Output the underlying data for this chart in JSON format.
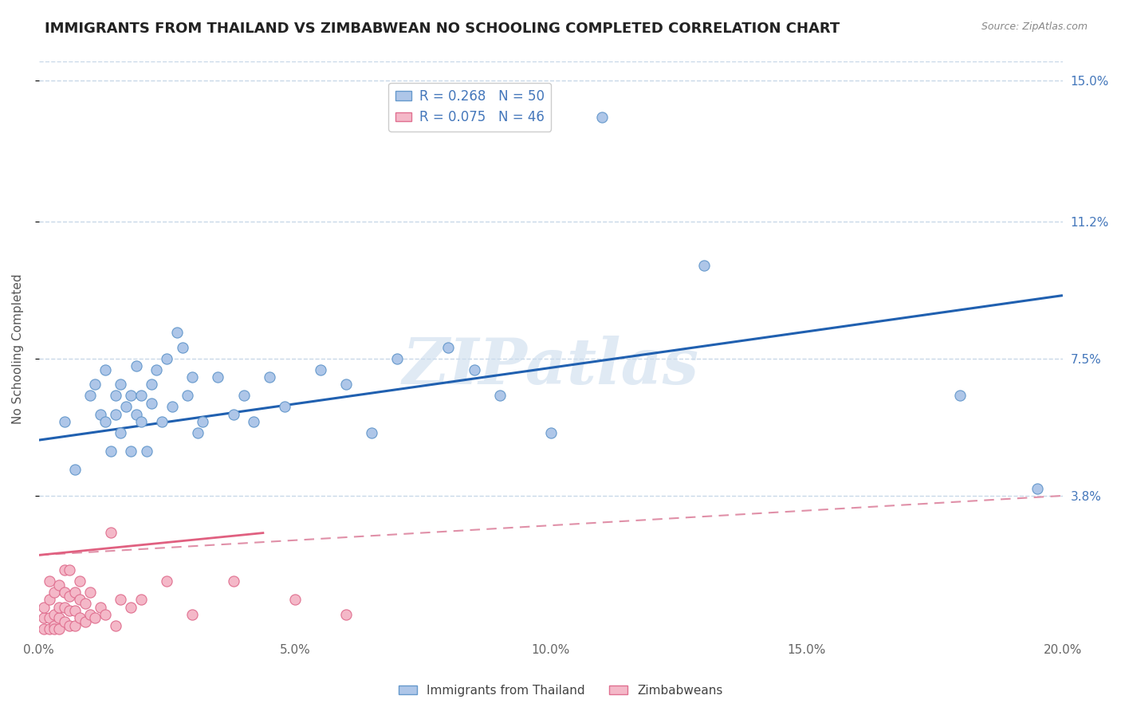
{
  "title": "IMMIGRANTS FROM THAILAND VS ZIMBABWEAN NO SCHOOLING COMPLETED CORRELATION CHART",
  "source_text": "Source: ZipAtlas.com",
  "ylabel": "No Schooling Completed",
  "xlim": [
    0.0,
    0.2
  ],
  "ylim": [
    0.0,
    0.155
  ],
  "xticks": [
    0.0,
    0.05,
    0.1,
    0.15,
    0.2
  ],
  "xtick_labels": [
    "0.0%",
    "5.0%",
    "10.0%",
    "15.0%",
    "20.0%"
  ],
  "ytick_positions": [
    0.038,
    0.075,
    0.112,
    0.15
  ],
  "ytick_labels": [
    "3.8%",
    "7.5%",
    "11.2%",
    "15.0%"
  ],
  "legend_r1": "R = 0.268",
  "legend_n1": "N = 50",
  "legend_r2": "R = 0.075",
  "legend_n2": "N = 46",
  "series1_label": "Immigrants from Thailand",
  "series2_label": "Zimbabweans",
  "series1_color": "#aec6e8",
  "series2_color": "#f4b8c8",
  "series1_edge_color": "#6699cc",
  "series2_edge_color": "#e07090",
  "trend1_color": "#2060b0",
  "trend2_solid_color": "#e06080",
  "trend2_dash_color": "#e090a8",
  "background_color": "#ffffff",
  "grid_color": "#c8d8e8",
  "watermark_text": "ZIPatlas",
  "title_fontsize": 13,
  "axis_label_fontsize": 11,
  "tick_label_fontsize": 11,
  "legend_fontsize": 12,
  "series1_x": [
    0.005,
    0.007,
    0.01,
    0.011,
    0.012,
    0.013,
    0.013,
    0.014,
    0.015,
    0.015,
    0.016,
    0.016,
    0.017,
    0.018,
    0.018,
    0.019,
    0.019,
    0.02,
    0.02,
    0.021,
    0.022,
    0.022,
    0.023,
    0.024,
    0.025,
    0.026,
    0.027,
    0.028,
    0.029,
    0.03,
    0.031,
    0.032,
    0.035,
    0.038,
    0.04,
    0.042,
    0.045,
    0.048,
    0.055,
    0.06,
    0.065,
    0.07,
    0.08,
    0.085,
    0.09,
    0.1,
    0.11,
    0.13,
    0.18,
    0.195
  ],
  "series1_y": [
    0.058,
    0.045,
    0.065,
    0.068,
    0.06,
    0.058,
    0.072,
    0.05,
    0.065,
    0.06,
    0.068,
    0.055,
    0.062,
    0.065,
    0.05,
    0.06,
    0.073,
    0.058,
    0.065,
    0.05,
    0.063,
    0.068,
    0.072,
    0.058,
    0.075,
    0.062,
    0.082,
    0.078,
    0.065,
    0.07,
    0.055,
    0.058,
    0.07,
    0.06,
    0.065,
    0.058,
    0.07,
    0.062,
    0.072,
    0.068,
    0.055,
    0.075,
    0.078,
    0.072,
    0.065,
    0.055,
    0.14,
    0.1,
    0.065,
    0.04
  ],
  "series2_x": [
    0.001,
    0.001,
    0.001,
    0.002,
    0.002,
    0.002,
    0.002,
    0.003,
    0.003,
    0.003,
    0.003,
    0.004,
    0.004,
    0.004,
    0.004,
    0.005,
    0.005,
    0.005,
    0.005,
    0.006,
    0.006,
    0.006,
    0.006,
    0.007,
    0.007,
    0.007,
    0.008,
    0.008,
    0.008,
    0.009,
    0.009,
    0.01,
    0.01,
    0.011,
    0.012,
    0.013,
    0.014,
    0.015,
    0.016,
    0.018,
    0.02,
    0.025,
    0.03,
    0.038,
    0.05,
    0.06
  ],
  "series2_y": [
    0.005,
    0.002,
    0.008,
    0.002,
    0.005,
    0.01,
    0.015,
    0.003,
    0.006,
    0.012,
    0.002,
    0.005,
    0.008,
    0.014,
    0.002,
    0.004,
    0.008,
    0.012,
    0.018,
    0.003,
    0.007,
    0.011,
    0.018,
    0.003,
    0.007,
    0.012,
    0.005,
    0.01,
    0.015,
    0.004,
    0.009,
    0.006,
    0.012,
    0.005,
    0.008,
    0.006,
    0.028,
    0.003,
    0.01,
    0.008,
    0.01,
    0.015,
    0.006,
    0.015,
    0.01,
    0.006
  ],
  "trend1_x_start": 0.0,
  "trend1_x_end": 0.2,
  "trend1_y_start": 0.053,
  "trend1_y_end": 0.092,
  "trend2_solid_x_start": 0.0,
  "trend2_solid_x_end": 0.044,
  "trend2_solid_y_start": 0.022,
  "trend2_solid_y_end": 0.028,
  "trend2_dash_x_start": 0.0,
  "trend2_dash_x_end": 0.2,
  "trend2_dash_y_start": 0.022,
  "trend2_dash_y_end": 0.038
}
